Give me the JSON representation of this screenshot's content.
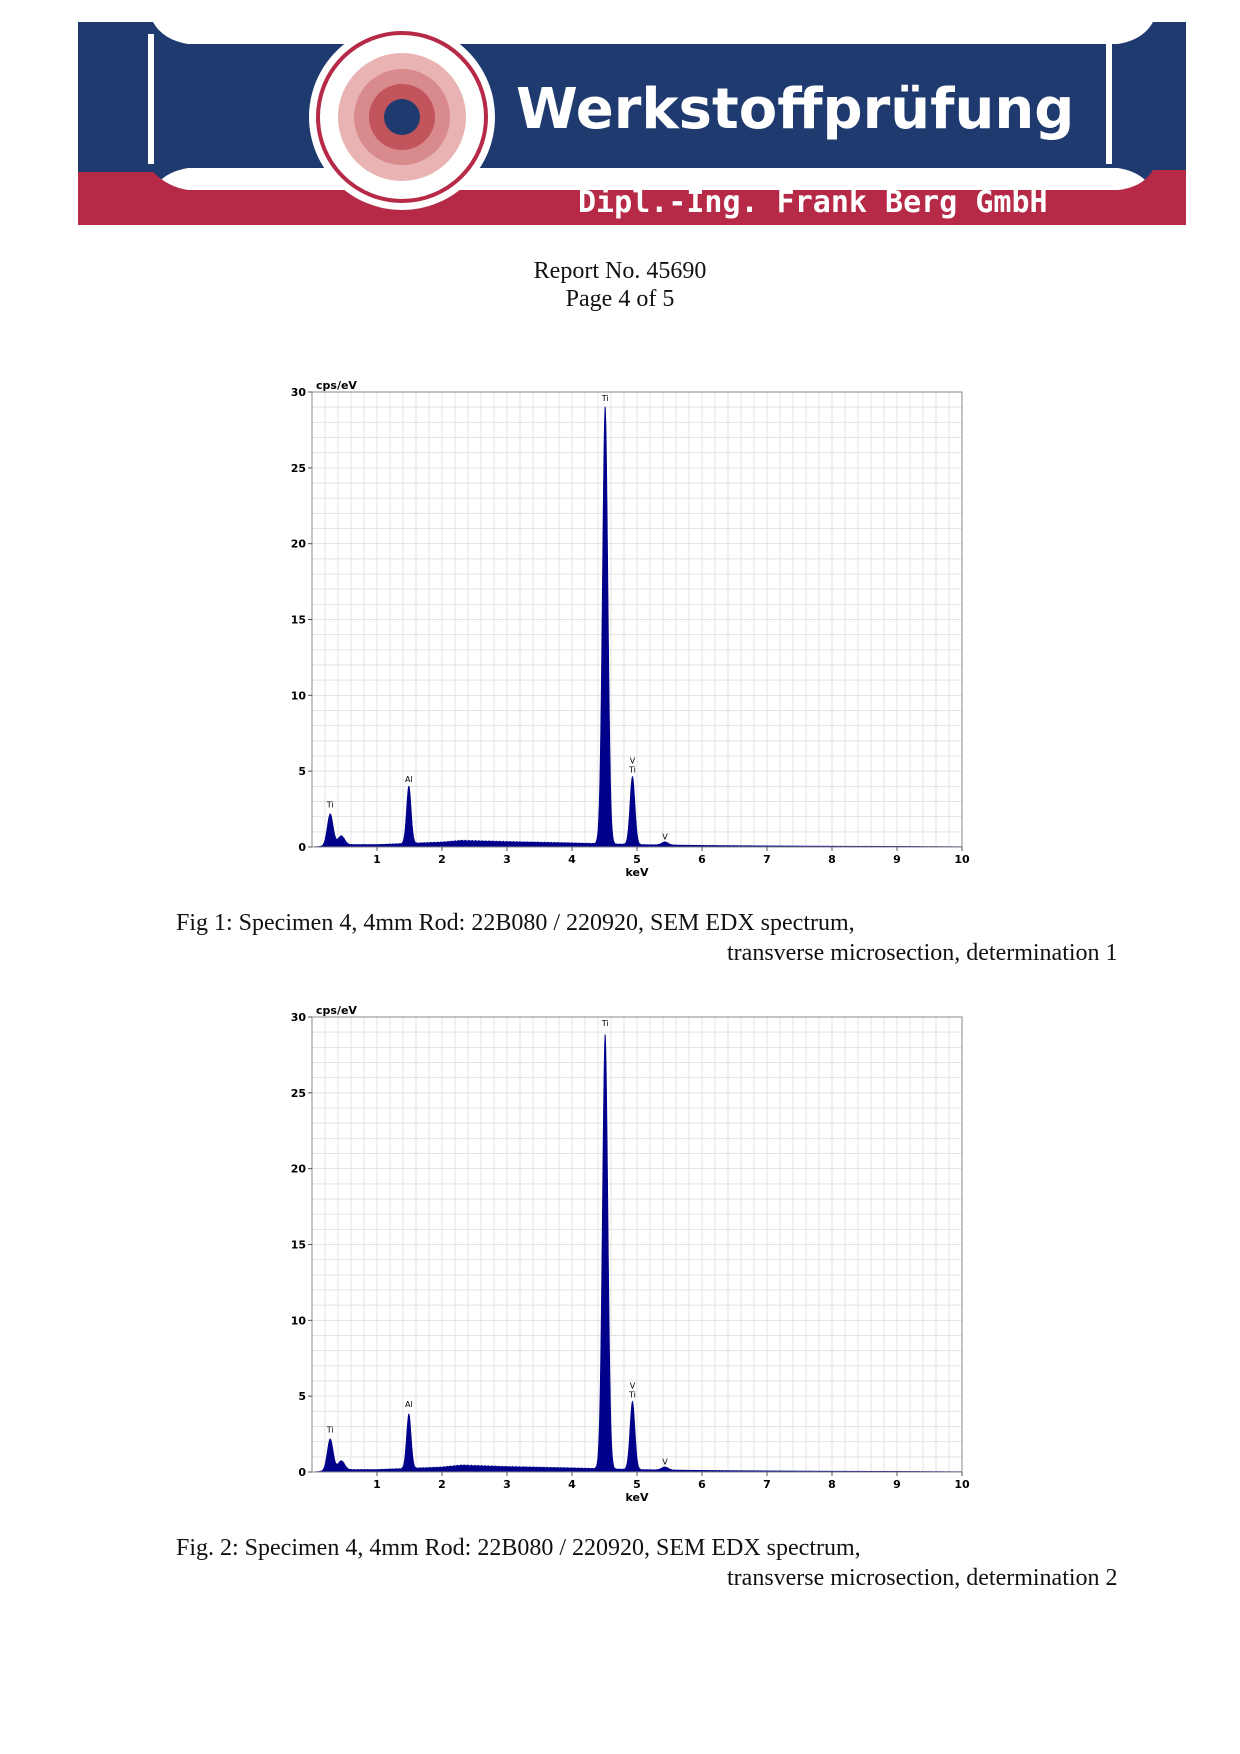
{
  "header": {
    "brand_title": "Werkstoffprüfung",
    "brand_subtitle": "Dipl.-Ing. Frank Berg GmbH",
    "colors": {
      "navy": "#1e3a6e",
      "crimson": "#b62a47",
      "rose": "#d98a8c"
    }
  },
  "report": {
    "number_line": "Report No. 45690",
    "page_line": "Page 4 of 5"
  },
  "captions": [
    {
      "line1": "Fig 1: Specimen 4, 4mm Rod: 22B080 / 220920, SEM EDX spectrum,",
      "line2": "transverse microsection, determination 1"
    },
    {
      "line1": "Fig. 2: Specimen 4, 4mm Rod: 22B080 / 220920, SEM EDX spectrum,",
      "line2": "transverse microsection, determination 2"
    }
  ],
  "chart_data": [
    {
      "type": "area",
      "xlabel": "keV",
      "ylabel": "cps/eV",
      "xlim": [
        0,
        10
      ],
      "ylim": [
        0,
        30
      ],
      "xticks": [
        1,
        2,
        3,
        4,
        5,
        6,
        7,
        8,
        9,
        10
      ],
      "yticks": [
        0,
        5,
        10,
        15,
        20,
        25,
        30
      ],
      "grid": true,
      "color": "#00008b",
      "peaks": [
        {
          "x": 0.28,
          "y": 2.1,
          "width": 0.045
        },
        {
          "x": 0.45,
          "y": 0.6,
          "width": 0.05
        },
        {
          "x": 1.49,
          "y": 3.8,
          "width": 0.035
        },
        {
          "x": 4.51,
          "y": 28.9,
          "width": 0.042
        },
        {
          "x": 4.93,
          "y": 4.5,
          "width": 0.038
        },
        {
          "x": 5.43,
          "y": 0.2,
          "width": 0.05
        }
      ],
      "background": [
        [
          0,
          0
        ],
        [
          0.5,
          0.15
        ],
        [
          1.0,
          0.15
        ],
        [
          2.0,
          0.3
        ],
        [
          2.3,
          0.4
        ],
        [
          3.0,
          0.33
        ],
        [
          4.0,
          0.25
        ],
        [
          5.0,
          0.15
        ],
        [
          6.0,
          0.1
        ],
        [
          7.0,
          0.07
        ],
        [
          8.0,
          0.05
        ],
        [
          9.0,
          0.04
        ],
        [
          10,
          0.02
        ]
      ],
      "annotations": [
        {
          "text": "Ti",
          "x": 0.28,
          "y": 2.6
        },
        {
          "text": "Al",
          "x": 1.49,
          "y": 4.3
        },
        {
          "text": "Ti",
          "x": 4.51,
          "y": 29.4
        },
        {
          "text": "V",
          "x": 4.93,
          "y": 5.5
        },
        {
          "text": "Ti",
          "x": 4.93,
          "y": 4.9
        },
        {
          "text": "V",
          "x": 5.43,
          "y": 0.5
        }
      ]
    },
    {
      "type": "area",
      "xlabel": "keV",
      "ylabel": "cps/eV",
      "xlim": [
        0,
        10
      ],
      "ylim": [
        0,
        30
      ],
      "xticks": [
        1,
        2,
        3,
        4,
        5,
        6,
        7,
        8,
        9,
        10
      ],
      "yticks": [
        0,
        5,
        10,
        15,
        20,
        25,
        30
      ],
      "grid": true,
      "color": "#00008b",
      "peaks": [
        {
          "x": 0.28,
          "y": 2.1,
          "width": 0.045
        },
        {
          "x": 0.45,
          "y": 0.6,
          "width": 0.05
        },
        {
          "x": 1.49,
          "y": 3.6,
          "width": 0.035
        },
        {
          "x": 4.51,
          "y": 28.7,
          "width": 0.042
        },
        {
          "x": 4.93,
          "y": 4.5,
          "width": 0.038
        },
        {
          "x": 5.43,
          "y": 0.2,
          "width": 0.05
        }
      ],
      "background": [
        [
          0,
          0
        ],
        [
          0.5,
          0.15
        ],
        [
          1.0,
          0.15
        ],
        [
          2.0,
          0.3
        ],
        [
          2.3,
          0.42
        ],
        [
          3.0,
          0.33
        ],
        [
          4.0,
          0.25
        ],
        [
          5.0,
          0.15
        ],
        [
          6.0,
          0.1
        ],
        [
          7.0,
          0.07
        ],
        [
          8.0,
          0.05
        ],
        [
          9.0,
          0.04
        ],
        [
          10,
          0.02
        ]
      ],
      "annotations": [
        {
          "text": "Ti",
          "x": 0.28,
          "y": 2.6
        },
        {
          "text": "Al",
          "x": 1.49,
          "y": 4.3
        },
        {
          "text": "Ti",
          "x": 4.51,
          "y": 29.4
        },
        {
          "text": "V",
          "x": 4.93,
          "y": 5.5
        },
        {
          "text": "Ti",
          "x": 4.93,
          "y": 4.9
        },
        {
          "text": "V",
          "x": 5.43,
          "y": 0.5
        }
      ]
    }
  ]
}
